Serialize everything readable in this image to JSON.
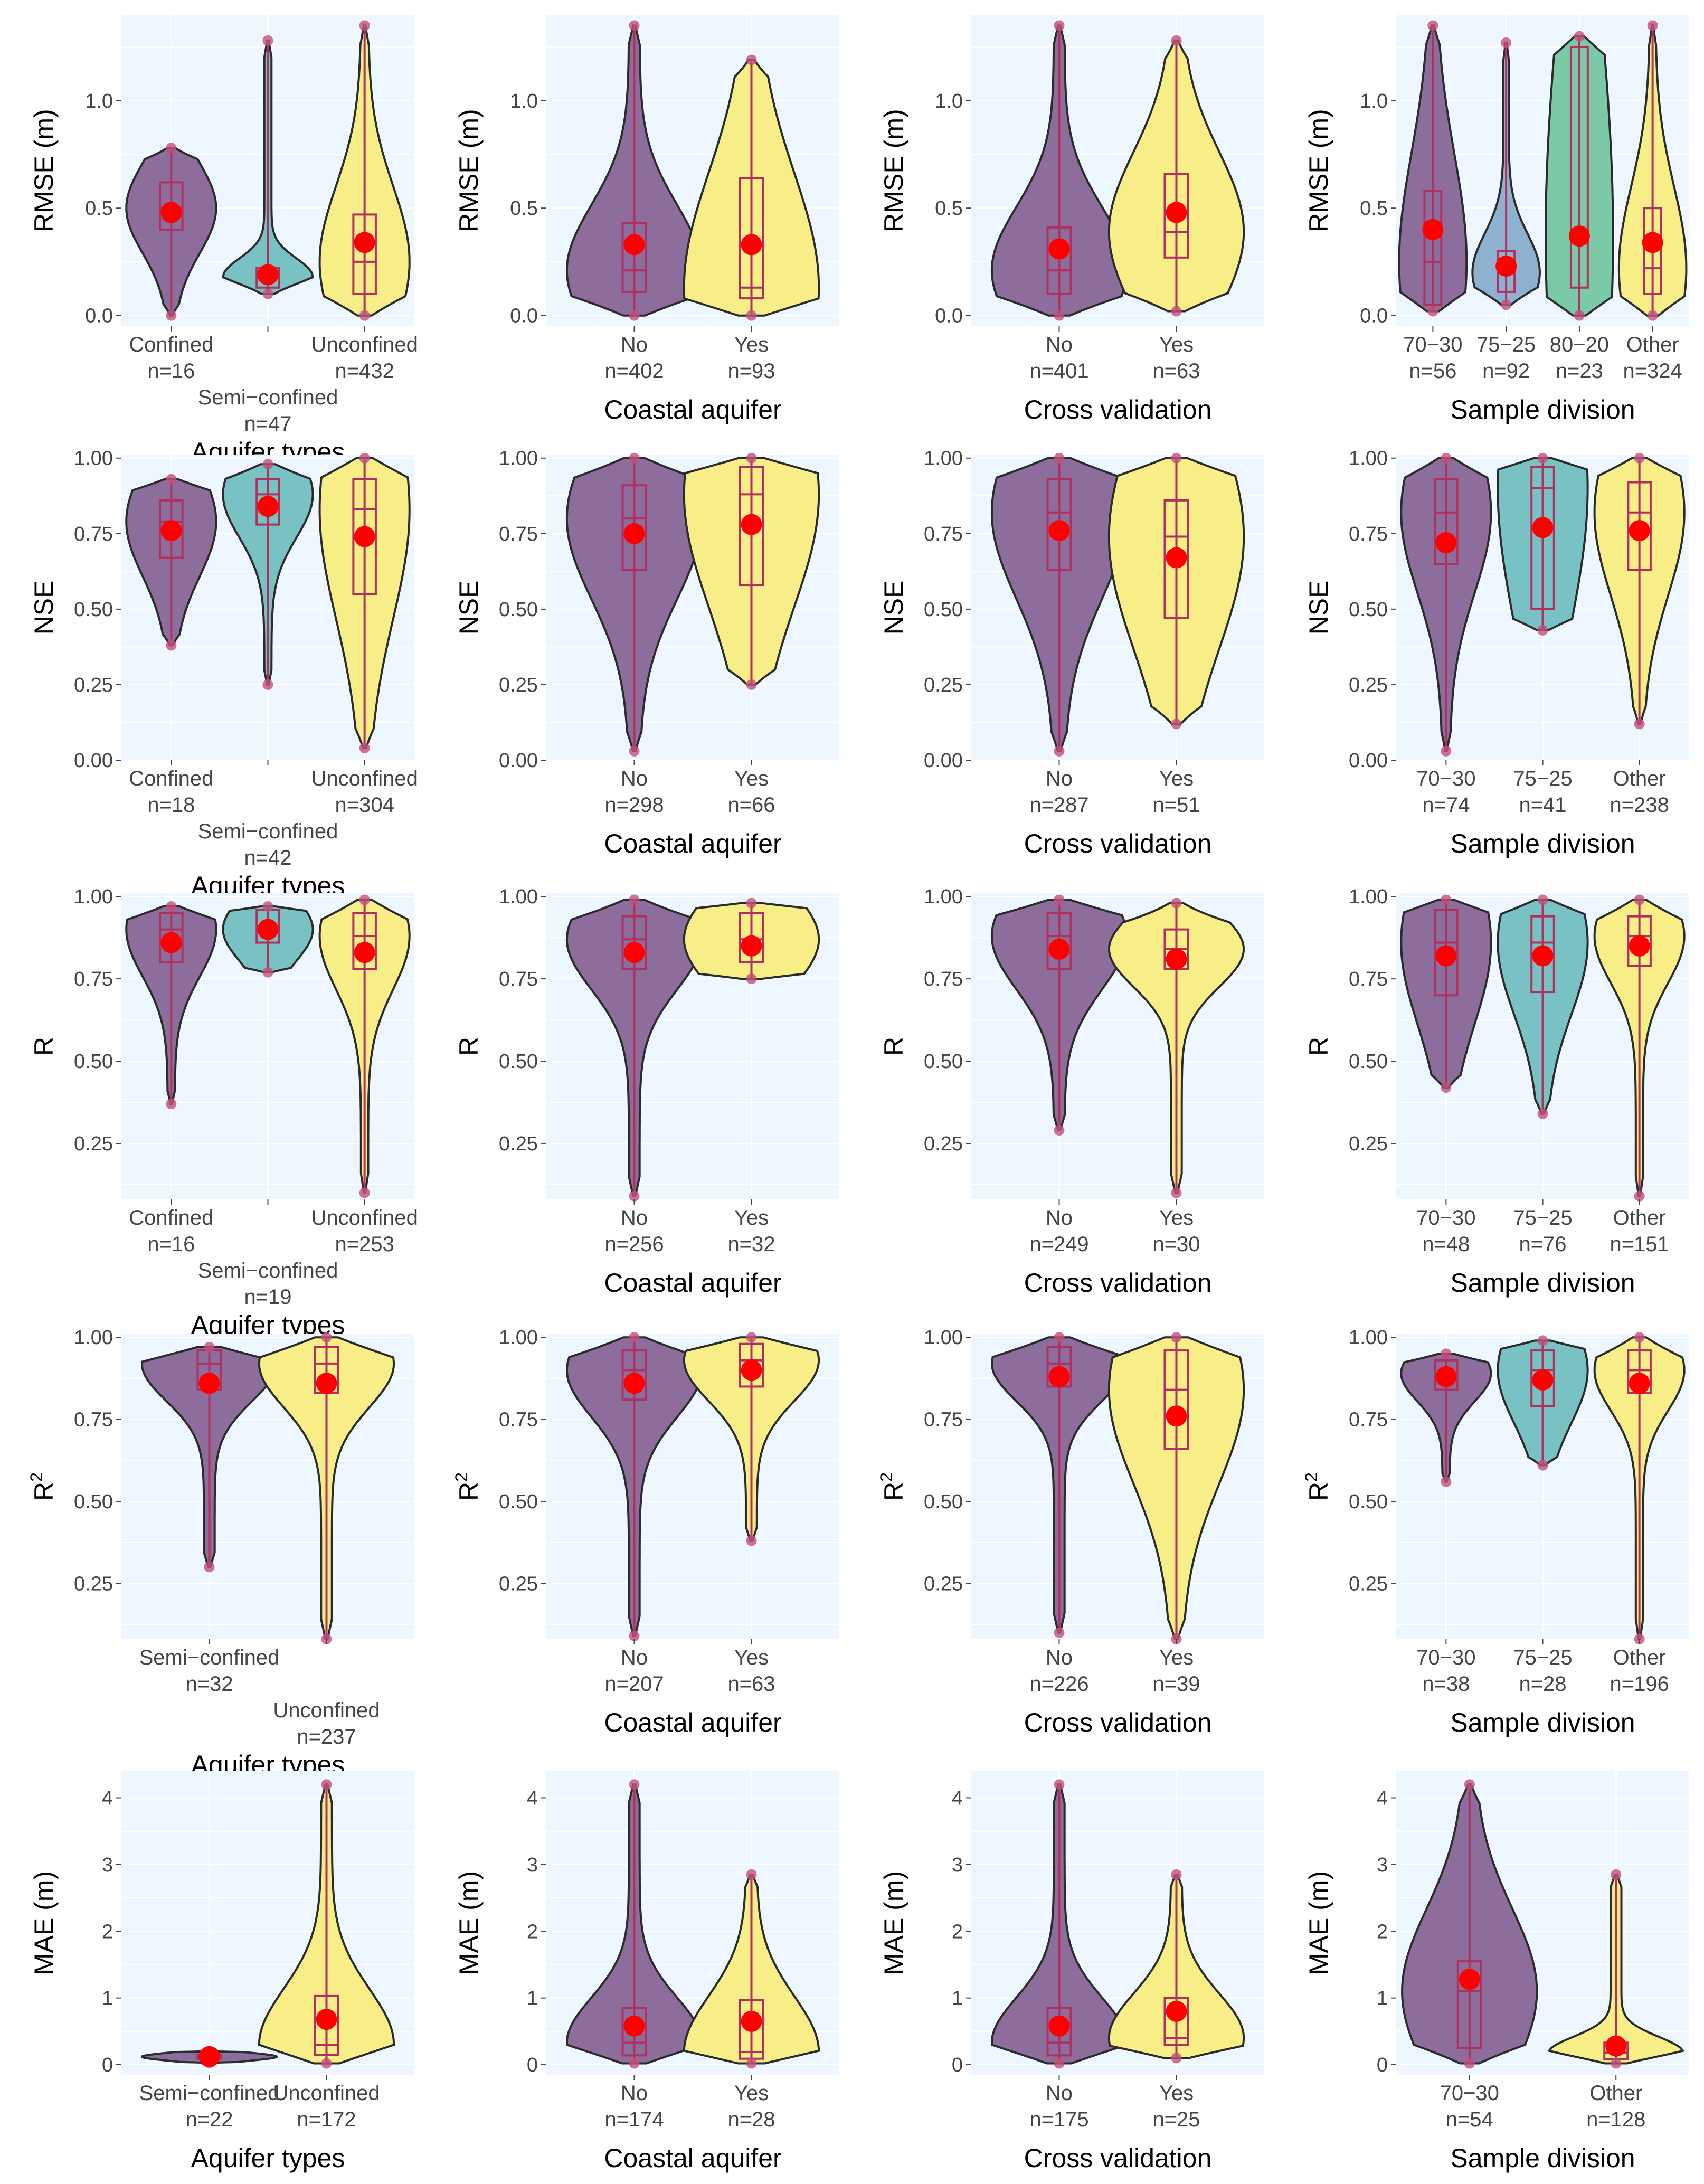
{
  "colors": {
    "panel_bg": "#eef6ff",
    "grid": "#ffffff",
    "outline": "#2b2b2b",
    "box": "#b03060",
    "mean": "#ff0000",
    "dot": "#c0507a",
    "purple": "#8c6d9c",
    "teal": "#79c2c4",
    "yellow": "#f8ee88",
    "blue": "#8fb1d0",
    "green": "#7bc9a6"
  },
  "chart_data": [
    {
      "type": "violin",
      "ylabel": "RMSE (m)",
      "xlabel": "Aquifer types",
      "ylim": [
        -0.05,
        1.4
      ],
      "yticks": [
        "0.0",
        "0.5",
        "1.0"
      ],
      "ytick_values": [
        0,
        0.5,
        1.0
      ],
      "categories": [
        {
          "name": "Confined",
          "n": "n=16",
          "color": "teal_purple",
          "fill": "purple",
          "min": 0.0,
          "q1": 0.4,
          "median": 0.5,
          "q3": 0.62,
          "max": 0.78,
          "mean": 0.48,
          "top": false
        },
        {
          "name": "Semi−confined",
          "n": "n=47",
          "fill": "teal",
          "min": 0.1,
          "q1": 0.13,
          "median": 0.18,
          "q3": 0.22,
          "max": 1.28,
          "mean": 0.19,
          "top": true
        },
        {
          "name": "Unconfined",
          "n": "n=432",
          "fill": "yellow",
          "min": 0.0,
          "q1": 0.1,
          "median": 0.25,
          "q3": 0.47,
          "max": 1.35,
          "mean": 0.34,
          "top": false
        }
      ]
    },
    {
      "type": "violin",
      "ylabel": "RMSE (m)",
      "xlabel": "Coastal aquifer",
      "ylim": [
        -0.05,
        1.4
      ],
      "yticks": [
        "0.0",
        "0.5",
        "1.0"
      ],
      "ytick_values": [
        0,
        0.5,
        1.0
      ],
      "categories": [
        {
          "name": "No",
          "n": "n=402",
          "fill": "purple",
          "min": 0.0,
          "q1": 0.11,
          "median": 0.21,
          "q3": 0.43,
          "max": 1.35,
          "mean": 0.33
        },
        {
          "name": "Yes",
          "n": "n=93",
          "fill": "yellow",
          "min": 0.0,
          "q1": 0.08,
          "median": 0.13,
          "q3": 0.64,
          "max": 1.19,
          "mean": 0.33
        }
      ]
    },
    {
      "type": "violin",
      "ylabel": "RMSE (m)",
      "xlabel": "Cross validation",
      "ylim": [
        -0.05,
        1.4
      ],
      "yticks": [
        "0.0",
        "0.5",
        "1.0"
      ],
      "ytick_values": [
        0,
        0.5,
        1.0
      ],
      "categories": [
        {
          "name": "No",
          "n": "n=401",
          "fill": "purple",
          "min": 0.0,
          "q1": 0.1,
          "median": 0.21,
          "q3": 0.41,
          "max": 1.35,
          "mean": 0.31
        },
        {
          "name": "Yes",
          "n": "n=63",
          "fill": "yellow",
          "min": 0.02,
          "q1": 0.27,
          "median": 0.39,
          "q3": 0.66,
          "max": 1.28,
          "mean": 0.48
        }
      ]
    },
    {
      "type": "violin",
      "ylabel": "RMSE (m)",
      "xlabel": "Sample division",
      "ylim": [
        -0.05,
        1.4
      ],
      "yticks": [
        "0.0",
        "0.5",
        "1.0"
      ],
      "ytick_values": [
        0,
        0.5,
        1.0
      ],
      "categories": [
        {
          "name": "70−30",
          "n": "n=56",
          "fill": "purple",
          "min": 0.02,
          "q1": 0.05,
          "median": 0.25,
          "q3": 0.58,
          "max": 1.35,
          "mean": 0.4
        },
        {
          "name": "75−25",
          "n": "n=92",
          "fill": "blue",
          "min": 0.05,
          "q1": 0.11,
          "median": 0.2,
          "q3": 0.3,
          "max": 1.27,
          "mean": 0.23
        },
        {
          "name": "80−20",
          "n": "n=23",
          "fill": "green",
          "min": 0.0,
          "q1": 0.13,
          "median": 0.37,
          "q3": 1.25,
          "max": 1.3,
          "mean": 0.37
        },
        {
          "name": "Other",
          "n": "n=324",
          "fill": "yellow",
          "min": 0.0,
          "q1": 0.1,
          "median": 0.22,
          "q3": 0.5,
          "max": 1.35,
          "mean": 0.34
        }
      ]
    },
    {
      "type": "violin",
      "ylabel": "NSE",
      "xlabel": "Aquifer types",
      "ylim": [
        0,
        1.01
      ],
      "yticks": [
        "0.00",
        "0.25",
        "0.50",
        "0.75",
        "1.00"
      ],
      "ytick_values": [
        0,
        0.25,
        0.5,
        0.75,
        1.0
      ],
      "categories": [
        {
          "name": "Confined",
          "n": "n=18",
          "fill": "purple",
          "min": 0.38,
          "q1": 0.67,
          "median": 0.79,
          "q3": 0.86,
          "max": 0.93,
          "mean": 0.76,
          "top": false
        },
        {
          "name": "Semi−confined",
          "n": "n=42",
          "fill": "teal",
          "min": 0.25,
          "q1": 0.78,
          "median": 0.88,
          "q3": 0.93,
          "max": 0.98,
          "mean": 0.84,
          "top": true
        },
        {
          "name": "Unconfined",
          "n": "n=304",
          "fill": "yellow",
          "min": 0.04,
          "q1": 0.55,
          "median": 0.83,
          "q3": 0.93,
          "max": 1.0,
          "mean": 0.74,
          "top": false
        }
      ]
    },
    {
      "type": "violin",
      "ylabel": "NSE",
      "xlabel": "Coastal aquifer",
      "ylim": [
        0,
        1.01
      ],
      "yticks": [
        "0.00",
        "0.25",
        "0.50",
        "0.75",
        "1.00"
      ],
      "ytick_values": [
        0,
        0.25,
        0.5,
        0.75,
        1.0
      ],
      "categories": [
        {
          "name": "No",
          "n": "n=298",
          "fill": "purple",
          "min": 0.03,
          "q1": 0.63,
          "median": 0.8,
          "q3": 0.91,
          "max": 1.0,
          "mean": 0.75
        },
        {
          "name": "Yes",
          "n": "n=66",
          "fill": "yellow",
          "min": 0.25,
          "q1": 0.58,
          "median": 0.88,
          "q3": 0.97,
          "max": 1.0,
          "mean": 0.78
        }
      ]
    },
    {
      "type": "violin",
      "ylabel": "NSE",
      "xlabel": "Cross validation",
      "ylim": [
        0,
        1.01
      ],
      "yticks": [
        "0.00",
        "0.25",
        "0.50",
        "0.75",
        "1.00"
      ],
      "ytick_values": [
        0,
        0.25,
        0.5,
        0.75,
        1.0
      ],
      "categories": [
        {
          "name": "No",
          "n": "n=287",
          "fill": "purple",
          "min": 0.03,
          "q1": 0.63,
          "median": 0.82,
          "q3": 0.93,
          "max": 1.0,
          "mean": 0.76
        },
        {
          "name": "Yes",
          "n": "n=51",
          "fill": "yellow",
          "min": 0.12,
          "q1": 0.47,
          "median": 0.74,
          "q3": 0.86,
          "max": 1.0,
          "mean": 0.67
        }
      ]
    },
    {
      "type": "violin",
      "ylabel": "NSE",
      "xlabel": "Sample division",
      "ylim": [
        0,
        1.01
      ],
      "yticks": [
        "0.00",
        "0.25",
        "0.50",
        "0.75",
        "1.00"
      ],
      "ytick_values": [
        0,
        0.25,
        0.5,
        0.75,
        1.0
      ],
      "categories": [
        {
          "name": "70−30",
          "n": "n=74",
          "fill": "purple",
          "min": 0.03,
          "q1": 0.65,
          "median": 0.82,
          "q3": 0.93,
          "max": 1.0,
          "mean": 0.72
        },
        {
          "name": "75−25",
          "n": "n=41",
          "fill": "teal",
          "min": 0.43,
          "q1": 0.5,
          "median": 0.9,
          "q3": 0.97,
          "max": 1.0,
          "mean": 0.77
        },
        {
          "name": "Other",
          "n": "n=238",
          "fill": "yellow",
          "min": 0.12,
          "q1": 0.63,
          "median": 0.82,
          "q3": 0.92,
          "max": 1.0,
          "mean": 0.76
        }
      ]
    },
    {
      "type": "violin",
      "ylabel": "R",
      "xlabel": "Aquifer types",
      "ylim": [
        0.08,
        1.01
      ],
      "yticks": [
        "0.25",
        "0.50",
        "0.75",
        "1.00"
      ],
      "ytick_values": [
        0.25,
        0.5,
        0.75,
        1.0
      ],
      "categories": [
        {
          "name": "Confined",
          "n": "n=16",
          "fill": "purple",
          "min": 0.37,
          "q1": 0.8,
          "median": 0.9,
          "q3": 0.95,
          "max": 0.97,
          "mean": 0.86,
          "top": false
        },
        {
          "name": "Semi−confined",
          "n": "n=19",
          "fill": "teal",
          "min": 0.77,
          "q1": 0.86,
          "median": 0.9,
          "q3": 0.96,
          "max": 0.97,
          "mean": 0.9,
          "top": true
        },
        {
          "name": "Unconfined",
          "n": "n=253",
          "fill": "yellow",
          "min": 0.1,
          "q1": 0.78,
          "median": 0.88,
          "q3": 0.95,
          "max": 0.99,
          "mean": 0.83,
          "top": false
        }
      ]
    },
    {
      "type": "violin",
      "ylabel": "R",
      "xlabel": "Coastal aquifer",
      "ylim": [
        0.08,
        1.01
      ],
      "yticks": [
        "0.25",
        "0.50",
        "0.75",
        "1.00"
      ],
      "ytick_values": [
        0.25,
        0.5,
        0.75,
        1.0
      ],
      "categories": [
        {
          "name": "No",
          "n": "n=256",
          "fill": "purple",
          "min": 0.09,
          "q1": 0.78,
          "median": 0.87,
          "q3": 0.94,
          "max": 0.99,
          "mean": 0.83
        },
        {
          "name": "Yes",
          "n": "n=32",
          "fill": "yellow",
          "min": 0.75,
          "q1": 0.8,
          "median": 0.87,
          "q3": 0.95,
          "max": 0.98,
          "mean": 0.85
        }
      ]
    },
    {
      "type": "violin",
      "ylabel": "R",
      "xlabel": "Cross validation",
      "ylim": [
        0.08,
        1.01
      ],
      "yticks": [
        "0.25",
        "0.50",
        "0.75",
        "1.00"
      ],
      "ytick_values": [
        0.25,
        0.5,
        0.75,
        1.0
      ],
      "categories": [
        {
          "name": "No",
          "n": "n=249",
          "fill": "purple",
          "min": 0.29,
          "q1": 0.78,
          "median": 0.88,
          "q3": 0.95,
          "max": 0.99,
          "mean": 0.84
        },
        {
          "name": "Yes",
          "n": "n=30",
          "fill": "yellow",
          "min": 0.1,
          "q1": 0.78,
          "median": 0.84,
          "q3": 0.9,
          "max": 0.98,
          "mean": 0.81
        }
      ]
    },
    {
      "type": "violin",
      "ylabel": "R",
      "xlabel": "Sample division",
      "ylim": [
        0.08,
        1.01
      ],
      "yticks": [
        "0.25",
        "0.50",
        "0.75",
        "1.00"
      ],
      "ytick_values": [
        0.25,
        0.5,
        0.75,
        1.0
      ],
      "categories": [
        {
          "name": "70−30",
          "n": "n=48",
          "fill": "purple",
          "min": 0.42,
          "q1": 0.7,
          "median": 0.86,
          "q3": 0.96,
          "max": 0.99,
          "mean": 0.82
        },
        {
          "name": "75−25",
          "n": "n=76",
          "fill": "teal",
          "min": 0.34,
          "q1": 0.71,
          "median": 0.86,
          "q3": 0.94,
          "max": 0.99,
          "mean": 0.82
        },
        {
          "name": "Other",
          "n": "n=151",
          "fill": "yellow",
          "min": 0.09,
          "q1": 0.79,
          "median": 0.88,
          "q3": 0.94,
          "max": 0.99,
          "mean": 0.85
        }
      ]
    },
    {
      "type": "violin",
      "ylabel": "R2",
      "xlabel": "Aquifer types",
      "ylim": [
        0.08,
        1.01
      ],
      "yticks": [
        "0.25",
        "0.50",
        "0.75",
        "1.00"
      ],
      "ytick_values": [
        0.25,
        0.5,
        0.75,
        1.0
      ],
      "pos": [
        0.3,
        0.7
      ],
      "categories": [
        {
          "name": "Semi−confined",
          "n": "n=32",
          "fill": "purple",
          "min": 0.3,
          "q1": 0.84,
          "median": 0.92,
          "q3": 0.96,
          "max": 0.97,
          "mean": 0.86,
          "top": false
        },
        {
          "name": "Unconfined",
          "n": "n=237",
          "fill": "yellow",
          "min": 0.08,
          "q1": 0.83,
          "median": 0.92,
          "q3": 0.97,
          "max": 1.0,
          "mean": 0.86,
          "top": true
        }
      ]
    },
    {
      "type": "violin",
      "ylabel": "R2",
      "xlabel": "Coastal aquifer",
      "ylim": [
        0.08,
        1.01
      ],
      "yticks": [
        "0.25",
        "0.50",
        "0.75",
        "1.00"
      ],
      "ytick_values": [
        0.25,
        0.5,
        0.75,
        1.0
      ],
      "categories": [
        {
          "name": "No",
          "n": "n=207",
          "fill": "purple",
          "min": 0.09,
          "q1": 0.81,
          "median": 0.9,
          "q3": 0.96,
          "max": 1.0,
          "mean": 0.86
        },
        {
          "name": "Yes",
          "n": "n=63",
          "fill": "yellow",
          "min": 0.38,
          "q1": 0.85,
          "median": 0.93,
          "q3": 0.98,
          "max": 1.0,
          "mean": 0.9
        }
      ]
    },
    {
      "type": "violin",
      "ylabel": "R2",
      "xlabel": "Cross validation",
      "ylim": [
        0.08,
        1.01
      ],
      "yticks": [
        "0.25",
        "0.50",
        "0.75",
        "1.00"
      ],
      "ytick_values": [
        0.25,
        0.5,
        0.75,
        1.0
      ],
      "categories": [
        {
          "name": "No",
          "n": "n=226",
          "fill": "purple",
          "min": 0.1,
          "q1": 0.85,
          "median": 0.92,
          "q3": 0.97,
          "max": 1.0,
          "mean": 0.88
        },
        {
          "name": "Yes",
          "n": "n=39",
          "fill": "yellow",
          "min": 0.08,
          "q1": 0.66,
          "median": 0.84,
          "q3": 0.96,
          "max": 1.0,
          "mean": 0.76
        }
      ]
    },
    {
      "type": "violin",
      "ylabel": "R2",
      "xlabel": "Sample division",
      "ylim": [
        0.08,
        1.01
      ],
      "yticks": [
        "0.25",
        "0.50",
        "0.75",
        "1.00"
      ],
      "ytick_values": [
        0.25,
        0.5,
        0.75,
        1.0
      ],
      "categories": [
        {
          "name": "70−30",
          "n": "n=38",
          "fill": "purple",
          "min": 0.56,
          "q1": 0.84,
          "median": 0.89,
          "q3": 0.93,
          "max": 0.95,
          "mean": 0.88
        },
        {
          "name": "75−25",
          "n": "n=28",
          "fill": "teal",
          "min": 0.61,
          "q1": 0.79,
          "median": 0.9,
          "q3": 0.96,
          "max": 0.99,
          "mean": 0.87
        },
        {
          "name": "Other",
          "n": "n=196",
          "fill": "yellow",
          "min": 0.08,
          "q1": 0.83,
          "median": 0.9,
          "q3": 0.96,
          "max": 1.0,
          "mean": 0.86
        }
      ]
    },
    {
      "type": "violin",
      "ylabel": "MAE (m)",
      "xlabel": "Aquifer types",
      "ylim": [
        -0.15,
        4.4
      ],
      "yticks": [
        "0",
        "1",
        "2",
        "3",
        "4"
      ],
      "ytick_values": [
        0,
        1,
        2,
        3,
        4
      ],
      "pos": [
        0.3,
        0.7
      ],
      "categories": [
        {
          "name": "Semi−confined",
          "n": "n=22",
          "fill": "purple",
          "min": 0.03,
          "q1": 0.09,
          "median": 0.12,
          "q3": 0.15,
          "max": 0.2,
          "mean": 0.12
        },
        {
          "name": "Unconfined",
          "n": "n=172",
          "fill": "yellow",
          "min": 0.02,
          "q1": 0.15,
          "median": 0.3,
          "q3": 1.03,
          "max": 4.2,
          "mean": 0.68
        }
      ]
    },
    {
      "type": "violin",
      "ylabel": "MAE (m)",
      "xlabel": "Coastal aquifer",
      "ylim": [
        -0.15,
        4.4
      ],
      "yticks": [
        "0",
        "1",
        "2",
        "3",
        "4"
      ],
      "ytick_values": [
        0,
        1,
        2,
        3,
        4
      ],
      "categories": [
        {
          "name": "No",
          "n": "n=174",
          "fill": "purple",
          "min": 0.02,
          "q1": 0.14,
          "median": 0.33,
          "q3": 0.85,
          "max": 4.2,
          "mean": 0.58
        },
        {
          "name": "Yes",
          "n": "n=28",
          "fill": "yellow",
          "min": 0.02,
          "q1": 0.09,
          "median": 0.19,
          "q3": 0.97,
          "max": 2.85,
          "mean": 0.65
        }
      ]
    },
    {
      "type": "violin",
      "ylabel": "MAE (m)",
      "xlabel": "Cross validation",
      "ylim": [
        -0.15,
        4.4
      ],
      "yticks": [
        "0",
        "1",
        "2",
        "3",
        "4"
      ],
      "ytick_values": [
        0,
        1,
        2,
        3,
        4
      ],
      "categories": [
        {
          "name": "No",
          "n": "n=175",
          "fill": "purple",
          "min": 0.02,
          "q1": 0.14,
          "median": 0.33,
          "q3": 0.85,
          "max": 4.2,
          "mean": 0.58
        },
        {
          "name": "Yes",
          "n": "n=25",
          "fill": "yellow",
          "min": 0.1,
          "q1": 0.3,
          "median": 0.4,
          "q3": 1.0,
          "max": 2.85,
          "mean": 0.8
        }
      ]
    },
    {
      "type": "violin",
      "ylabel": "MAE (m)",
      "xlabel": "Sample division",
      "ylim": [
        -0.15,
        4.4
      ],
      "yticks": [
        "0",
        "1",
        "2",
        "3",
        "4"
      ],
      "ytick_values": [
        0,
        1,
        2,
        3,
        4
      ],
      "pos": [
        0.25,
        0.75
      ],
      "categories": [
        {
          "name": "70−30",
          "n": "n=54",
          "fill": "purple",
          "min": 0.02,
          "q1": 0.25,
          "median": 1.1,
          "q3": 1.55,
          "max": 4.2,
          "mean": 1.28
        },
        {
          "name": "Other",
          "n": "n=128",
          "fill": "yellow",
          "min": 0.02,
          "q1": 0.08,
          "median": 0.18,
          "q3": 0.33,
          "max": 2.85,
          "mean": 0.28
        }
      ]
    }
  ]
}
